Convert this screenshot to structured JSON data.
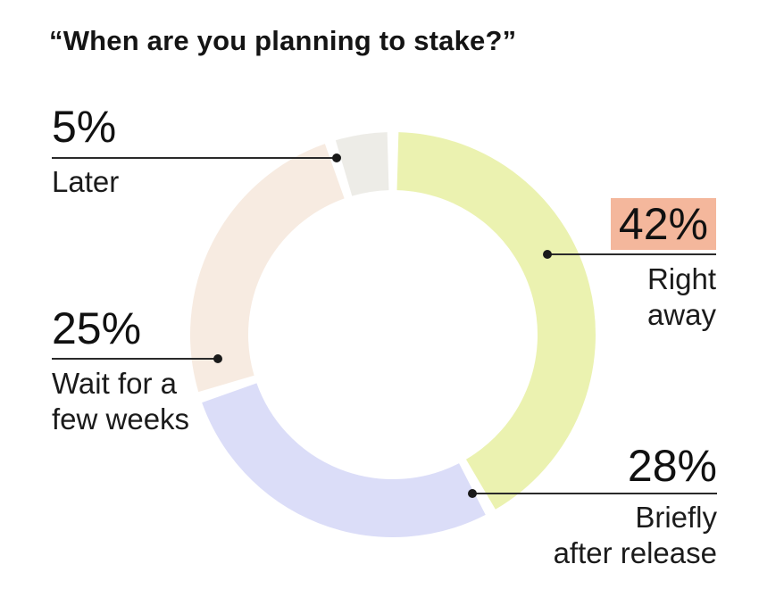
{
  "title": "“When are you planning to stake?”",
  "chart_data": {
    "type": "pie",
    "subtype": "donut",
    "title": "When are you planning to stake?",
    "unit": "%",
    "legend_position": "callouts-around-donut",
    "start_angle_deg": 0,
    "direction": "clockwise",
    "segments": [
      {
        "id": "right-away",
        "label": "Right\naway",
        "value": 42,
        "value_text": "42%",
        "color": "#EBF2B0",
        "highlighted": true,
        "highlight_color": "#F4B79C"
      },
      {
        "id": "briefly-after-release",
        "label": "Briefly\nafter release",
        "value": 28,
        "value_text": "28%",
        "color": "#DBDDF8",
        "highlighted": false
      },
      {
        "id": "wait-few-weeks",
        "label": "Wait for a\nfew weeks",
        "value": 25,
        "value_text": "25%",
        "color": "#F7EBE1",
        "highlighted": false
      },
      {
        "id": "later",
        "label": "Later",
        "value": 5,
        "value_text": "5%",
        "color": "#EDECE7",
        "highlighted": false
      }
    ],
    "colors": {
      "background": "#FFFFFF",
      "text": "#141414",
      "leader_line": "#2A2A2A",
      "highlight": "#F4B79C"
    }
  }
}
